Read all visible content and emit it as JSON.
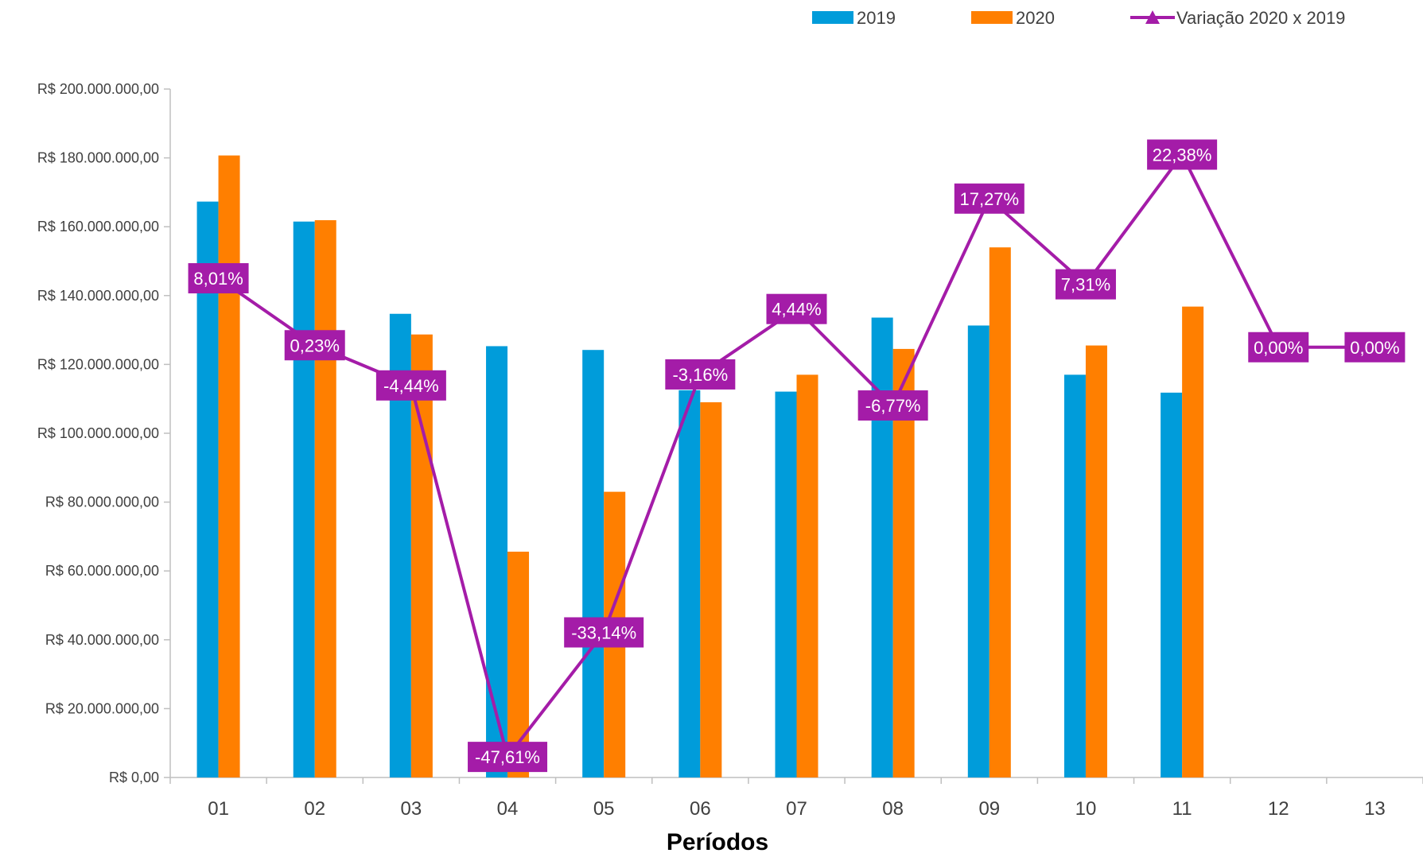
{
  "colors": {
    "series_2019": "#009cda",
    "series_2020": "#ff7f00",
    "variation": "#a41ca8",
    "axis": "#bfbfbf"
  },
  "chart_data": {
    "type": "bar",
    "xlabel": "Períodos",
    "ylabel": "",
    "ylim": [
      0,
      200000000
    ],
    "y_ticks": [
      0,
      20000000,
      40000000,
      60000000,
      80000000,
      100000000,
      120000000,
      140000000,
      160000000,
      180000000,
      200000000
    ],
    "y_tick_labels": [
      "R$ 0,00",
      "R$ 20.000.000,00",
      "R$ 40.000.000,00",
      "R$ 60.000.000,00",
      "R$ 80.000.000,00",
      "R$ 100.000.000,00",
      "R$ 120.000.000,00",
      "R$ 140.000.000,00",
      "R$ 160.000.000,00",
      "R$ 180.000.000,00",
      "R$ 200.000.000,00"
    ],
    "categories": [
      "01",
      "02",
      "03",
      "04",
      "05",
      "06",
      "07",
      "08",
      "09",
      "10",
      "11",
      "12",
      "13"
    ],
    "legend_position": "top-right",
    "grid": false,
    "series": [
      {
        "name": "2019",
        "kind": "bar",
        "values": [
          167300000,
          161500000,
          134700000,
          125300000,
          124200000,
          112500000,
          112100000,
          133600000,
          131300000,
          117000000,
          111800000,
          null,
          null
        ]
      },
      {
        "name": "2020",
        "kind": "bar",
        "values": [
          180700000,
          161900000,
          128700000,
          65600000,
          83000000,
          109000000,
          117000000,
          124500000,
          154000000,
          125500000,
          136800000,
          null,
          null
        ]
      },
      {
        "name": "Variação 2020 x 2019",
        "kind": "line",
        "marker": "triangle",
        "secondary_axis_range": [
          -50,
          30
        ],
        "values": [
          8.01,
          0.23,
          -4.44,
          -47.61,
          -33.14,
          -3.16,
          4.44,
          -6.77,
          17.27,
          7.31,
          22.38,
          0.0,
          0.0
        ],
        "labels": [
          "8,01%",
          "0,23%",
          "-4,44%",
          "-47,61%",
          "-33,14%",
          "-3,16%",
          "4,44%",
          "-6,77%",
          "17,27%",
          "7,31%",
          "22,38%",
          "0,00%",
          "0,00%"
        ]
      }
    ]
  }
}
